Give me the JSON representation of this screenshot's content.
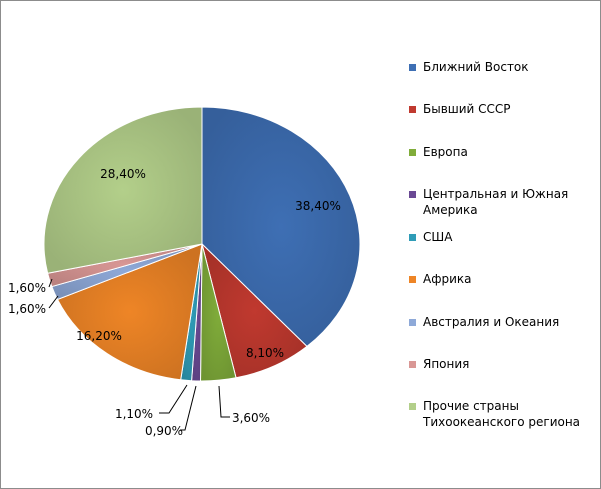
{
  "chart_data": {
    "type": "pie",
    "legend_position": "right",
    "series": [
      {
        "name": "Ближний Восток",
        "label": "38,40%",
        "value": 38.4,
        "color": "#3e6fb4"
      },
      {
        "name": "Бывший СССР",
        "label": "8,10%",
        "value": 8.1,
        "color": "#c0392f"
      },
      {
        "name": "Европа",
        "label": "3,60%",
        "value": 3.6,
        "color": "#80ac3a"
      },
      {
        "name": "Центральная и Южная Америка",
        "label": "0,90%",
        "value": 0.9,
        "color": "#6a4994"
      },
      {
        "name": "США",
        "label": "1,10%",
        "value": 1.1,
        "color": "#2f9cb7"
      },
      {
        "name": "Африка",
        "label": "16,20%",
        "value": 16.2,
        "color": "#ee8526"
      },
      {
        "name": "Австралия и Океания",
        "label": "1,60%",
        "value": 1.6,
        "color": "#8ea9d8"
      },
      {
        "name": "Япония",
        "label": "1,60%",
        "value": 1.6,
        "color": "#d99795"
      },
      {
        "name": "Прочие страны Тихоокеанского региона",
        "label": "28,40%",
        "value": 28.4,
        "color": "#b3cf8a"
      }
    ]
  }
}
